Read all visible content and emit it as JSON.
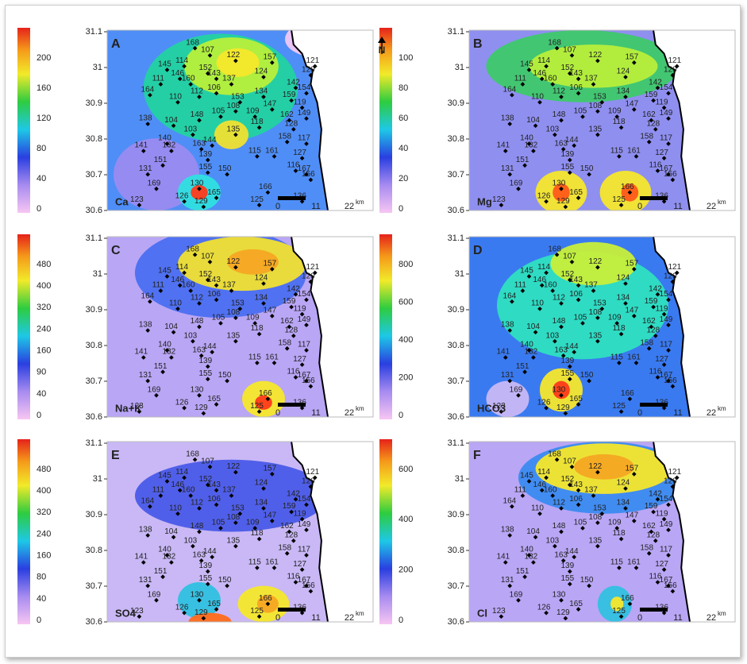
{
  "figure": {
    "north": "N",
    "y_axis_ticks": [
      "31.1",
      "31",
      "30.9",
      "30.8",
      "30.7",
      "30.6"
    ],
    "scale_bar": {
      "zero": "0",
      "mid": "11",
      "end": "22",
      "unit": "km"
    },
    "stations": [
      "168",
      "107",
      "145",
      "114",
      "146",
      "111",
      "160",
      "112",
      "110",
      "164",
      "122",
      "157",
      "143",
      "137",
      "152",
      "124",
      "120",
      "121",
      "106",
      "142",
      "134",
      "153",
      "147",
      "159",
      "119",
      "154",
      "105",
      "109",
      "108",
      "118",
      "162",
      "149",
      "128",
      "148",
      "104",
      "103",
      "138",
      "140",
      "135",
      "144",
      "163",
      "115",
      "161",
      "158",
      "117",
      "132",
      "139",
      "141",
      "151",
      "155",
      "131",
      "116",
      "127",
      "167",
      "150",
      "156",
      "130",
      "169",
      "126",
      "165",
      "129",
      "123",
      "166",
      "125",
      "136"
    ],
    "panels": [
      {
        "letter": "A",
        "element": "Ca",
        "colorbar_ticks": [
          "0",
          "40",
          "80",
          "120",
          "160",
          "200"
        ]
      },
      {
        "letter": "B",
        "element": "Mg",
        "colorbar_ticks": [
          "0",
          "20",
          "40",
          "60",
          "80",
          "100"
        ]
      },
      {
        "letter": "C",
        "element": "Na+K",
        "colorbar_ticks": [
          "0",
          "40",
          "90",
          "160",
          "240",
          "320",
          "400",
          "480"
        ]
      },
      {
        "letter": "D",
        "element": "HCO3",
        "colorbar_ticks": [
          "0",
          "200",
          "400",
          "600",
          "800"
        ]
      },
      {
        "letter": "E",
        "element": "SO4",
        "colorbar_ticks": [
          "0",
          "40",
          "80",
          "160",
          "240",
          "320",
          "400",
          "480"
        ]
      },
      {
        "letter": "F",
        "element": "Cl",
        "colorbar_ticks": [
          "0",
          "200",
          "400",
          "600"
        ]
      }
    ]
  }
}
